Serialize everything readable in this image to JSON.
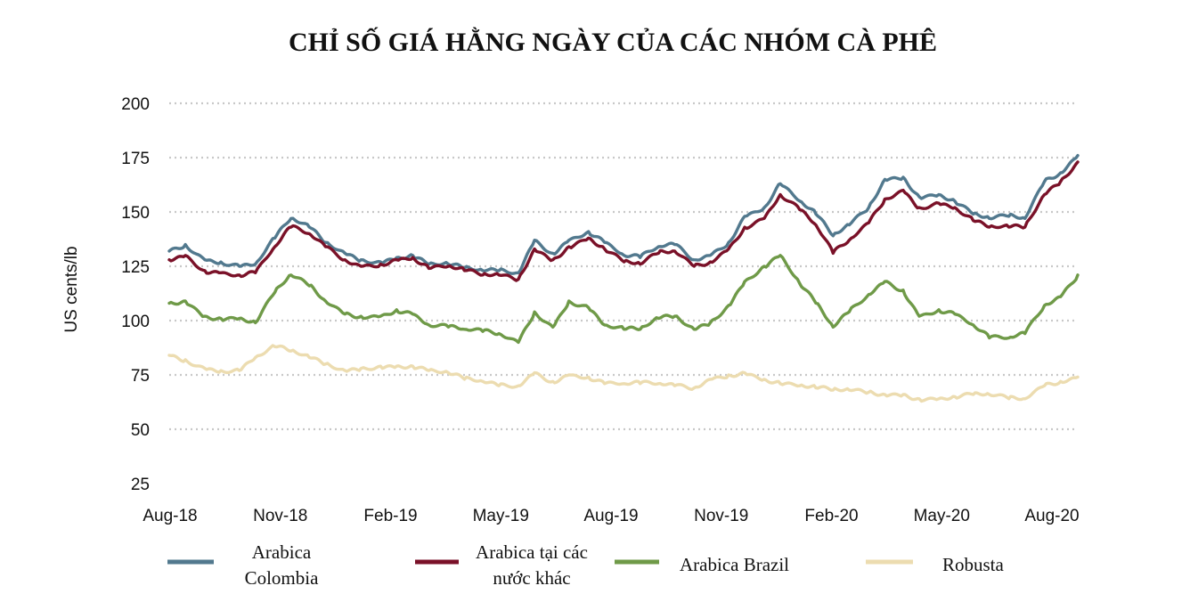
{
  "chart_data": {
    "type": "line",
    "title": "CHỈ SỐ GIÁ HẰNG NGÀY CỦA CÁC NHÓM CÀ PHÊ",
    "xlabel": "",
    "ylabel": "US cents/lb",
    "ylim": [
      25,
      200
    ],
    "yticks": [
      25,
      50,
      75,
      100,
      125,
      150,
      175,
      200
    ],
    "x_tick_labels": [
      "Aug-18",
      "Nov-18",
      "Feb-19",
      "May-19",
      "Aug-19",
      "Nov-19",
      "Feb-20",
      "May-20",
      "Aug-20"
    ],
    "x_range": [
      "2018-08-01",
      "2020-09-30"
    ],
    "grid": "horizontal dotted",
    "legend_position": "bottom",
    "x": [
      "2018-08-01",
      "2018-08-15",
      "2018-09-01",
      "2018-09-15",
      "2018-10-01",
      "2018-10-15",
      "2018-11-01",
      "2018-11-15",
      "2018-12-01",
      "2018-12-15",
      "2019-01-01",
      "2019-01-15",
      "2019-02-01",
      "2019-02-15",
      "2019-03-01",
      "2019-03-15",
      "2019-04-01",
      "2019-04-15",
      "2019-05-01",
      "2019-05-15",
      "2019-06-01",
      "2019-06-15",
      "2019-07-01",
      "2019-07-15",
      "2019-08-01",
      "2019-08-15",
      "2019-09-01",
      "2019-09-15",
      "2019-10-01",
      "2019-10-15",
      "2019-11-01",
      "2019-11-15",
      "2019-12-01",
      "2019-12-15",
      "2020-01-01",
      "2020-01-15",
      "2020-02-01",
      "2020-02-15",
      "2020-03-01",
      "2020-03-15",
      "2020-04-01",
      "2020-04-15",
      "2020-05-01",
      "2020-05-15",
      "2020-06-01",
      "2020-06-15",
      "2020-07-01",
      "2020-07-15",
      "2020-08-01",
      "2020-08-15",
      "2020-09-01",
      "2020-09-15",
      "2020-09-30"
    ],
    "series": [
      {
        "name": "Arabica Colombia",
        "color": "#52798e",
        "values": [
          132,
          135,
          128,
          127,
          125,
          126,
          138,
          147,
          143,
          136,
          131,
          128,
          127,
          129,
          130,
          126,
          126,
          124,
          123,
          123,
          122,
          137,
          131,
          137,
          141,
          136,
          130,
          129,
          134,
          135,
          128,
          130,
          136,
          148,
          152,
          163,
          155,
          149,
          139,
          144,
          152,
          165,
          166,
          157,
          158,
          155,
          149,
          147,
          148,
          147,
          164,
          168,
          176
        ]
      },
      {
        "name": "Arabica tại các nước khác",
        "color": "#7a1128",
        "values": [
          128,
          130,
          123,
          122,
          121,
          122,
          134,
          143,
          140,
          134,
          128,
          125,
          126,
          128,
          129,
          124,
          125,
          123,
          121,
          121,
          119,
          133,
          128,
          134,
          138,
          133,
          127,
          126,
          131,
          132,
          125,
          127,
          133,
          143,
          147,
          158,
          151,
          144,
          131,
          137,
          145,
          156,
          160,
          152,
          154,
          152,
          146,
          143,
          143,
          143,
          158,
          164,
          173
        ]
      },
      {
        "name": "Arabica Brazil",
        "color": "#6f9a48",
        "values": [
          108,
          109,
          102,
          101,
          101,
          99,
          113,
          121,
          116,
          109,
          103,
          102,
          102,
          105,
          103,
          98,
          97,
          96,
          95,
          94,
          90,
          104,
          97,
          109,
          106,
          98,
          96,
          96,
          101,
          102,
          96,
          99,
          107,
          118,
          125,
          130,
          117,
          108,
          97,
          104,
          112,
          118,
          114,
          102,
          105,
          103,
          98,
          92,
          92,
          94,
          107,
          111,
          121
        ]
      },
      {
        "name": "Robusta",
        "color": "#ecdcb0",
        "values": [
          84,
          82,
          78,
          77,
          77,
          83,
          88,
          86,
          83,
          80,
          77,
          78,
          79,
          79,
          79,
          77,
          76,
          73,
          72,
          70,
          70,
          76,
          72,
          75,
          74,
          71,
          71,
          71,
          71,
          70,
          69,
          73,
          75,
          76,
          73,
          71,
          70,
          69,
          68,
          68,
          67,
          66,
          66,
          64,
          64,
          65,
          66,
          66,
          64,
          64,
          70,
          72,
          74
        ]
      }
    ]
  }
}
